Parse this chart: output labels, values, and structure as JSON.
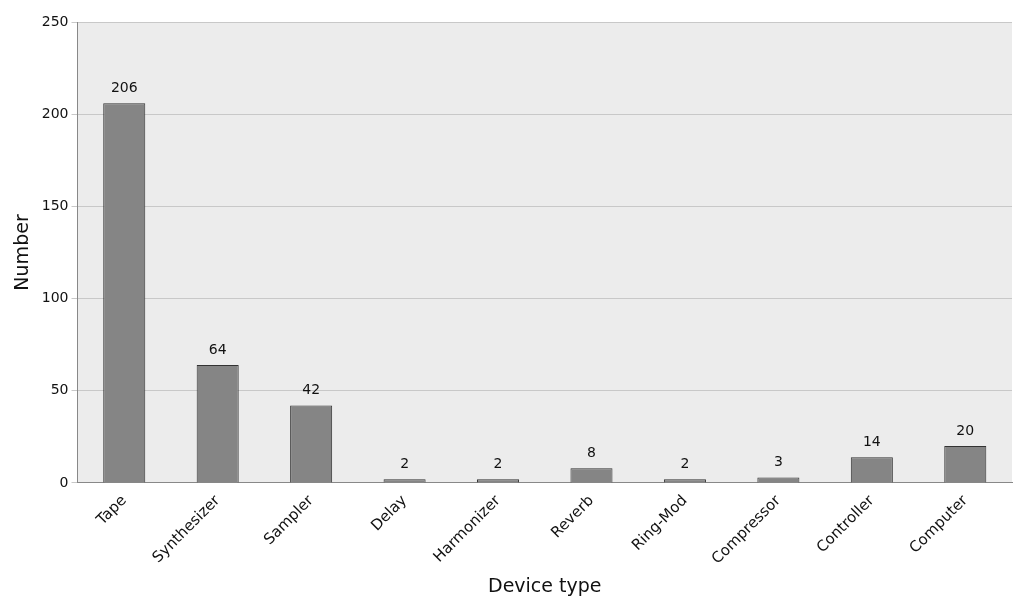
{
  "chart_data": {
    "type": "bar",
    "xlabel": "Device type",
    "ylabel": "Number",
    "categories": [
      "Tape",
      "Synthesizer",
      "Sampler",
      "Delay",
      "Harmonizer",
      "Reverb",
      "Ring-Mod",
      "Compressor",
      "Controller",
      "Computer"
    ],
    "values": [
      206,
      64,
      42,
      2,
      2,
      8,
      2,
      3,
      14,
      20
    ],
    "color": "#858585",
    "ylim": [
      0,
      250
    ],
    "yticks": [
      0,
      50,
      100,
      150,
      200,
      250
    ],
    "grid": "y",
    "data_labels": true
  }
}
